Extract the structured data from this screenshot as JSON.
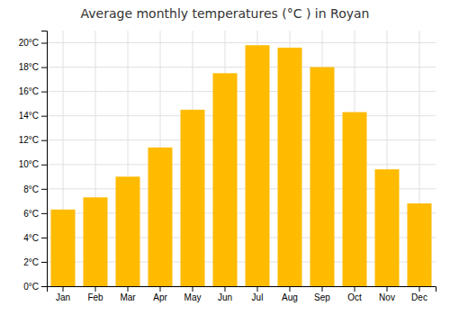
{
  "chart_data": {
    "type": "bar",
    "title": "Average monthly temperatures (°C ) in Royan",
    "categories": [
      "Jan",
      "Feb",
      "Mar",
      "Apr",
      "May",
      "Jun",
      "Jul",
      "Aug",
      "Sep",
      "Oct",
      "Nov",
      "Dec"
    ],
    "values": [
      6.3,
      7.3,
      9.0,
      11.4,
      14.5,
      17.5,
      19.8,
      19.6,
      18.0,
      14.3,
      9.6,
      6.8
    ],
    "color": "#FFBB00",
    "ylim": [
      0,
      21
    ],
    "yticks": [
      {
        "value": 0,
        "label": "0°C"
      },
      {
        "value": 2,
        "label": "2°C"
      },
      {
        "value": 4,
        "label": "4°C"
      },
      {
        "value": 6,
        "label": "6°C"
      },
      {
        "value": 8,
        "label": "8°C"
      },
      {
        "value": 10,
        "label": "10°C"
      },
      {
        "value": 12,
        "label": "12°C"
      },
      {
        "value": 14,
        "label": "14°C"
      },
      {
        "value": 16,
        "label": "16°C"
      },
      {
        "value": 18,
        "label": "18°C"
      },
      {
        "value": 20,
        "label": "20°C"
      }
    ],
    "grid": true
  }
}
